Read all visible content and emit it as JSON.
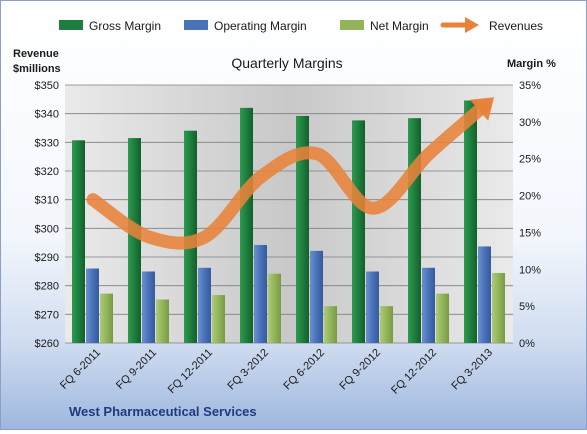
{
  "chart_data": {
    "type": "bar",
    "title": "Quarterly Margins",
    "footer": "West Pharmaceutical  Services",
    "left_axis": {
      "title_line1": "Revenue",
      "title_line2": "$millions",
      "range": [
        260,
        350
      ],
      "ticks": [
        "$260",
        "$270",
        "$280",
        "$290",
        "$300",
        "$310",
        "$320",
        "$330",
        "$340",
        "$350"
      ]
    },
    "right_axis": {
      "title": "Margin %",
      "range": [
        0,
        35
      ],
      "ticks": [
        "0%",
        "5%",
        "10%",
        "15%",
        "20%",
        "25%",
        "30%",
        "35%"
      ]
    },
    "categories": [
      "FQ 6-2011",
      "FQ 9-2011",
      "FQ 12-2011",
      "FQ 3-2012",
      "FQ 6-2012",
      "FQ 9-2012",
      "FQ 12-2012",
      "FQ 3-2013"
    ],
    "series": [
      {
        "name": "Gross Margin",
        "type": "bar",
        "axis": "right",
        "color": "#1e7e3e",
        "values": [
          27.5,
          27.8,
          28.8,
          31.9,
          30.8,
          30.2,
          30.5,
          32.9
        ]
      },
      {
        "name": "Operating Margin",
        "type": "bar",
        "axis": "right",
        "color": "#4a72b8",
        "values": [
          10.1,
          9.7,
          10.2,
          13.3,
          12.5,
          9.7,
          10.2,
          13.1
        ]
      },
      {
        "name": "Net Margin",
        "type": "bar",
        "axis": "right",
        "color": "#92b45a",
        "values": [
          6.7,
          5.9,
          6.5,
          9.4,
          5.0,
          5.0,
          6.7,
          9.5
        ]
      },
      {
        "name": "Revenues",
        "type": "line",
        "axis": "left",
        "color": "#e8823a",
        "values": [
          310,
          297,
          297,
          318,
          326,
          307,
          326,
          343
        ]
      }
    ],
    "grid": true,
    "legend_position": "top"
  }
}
